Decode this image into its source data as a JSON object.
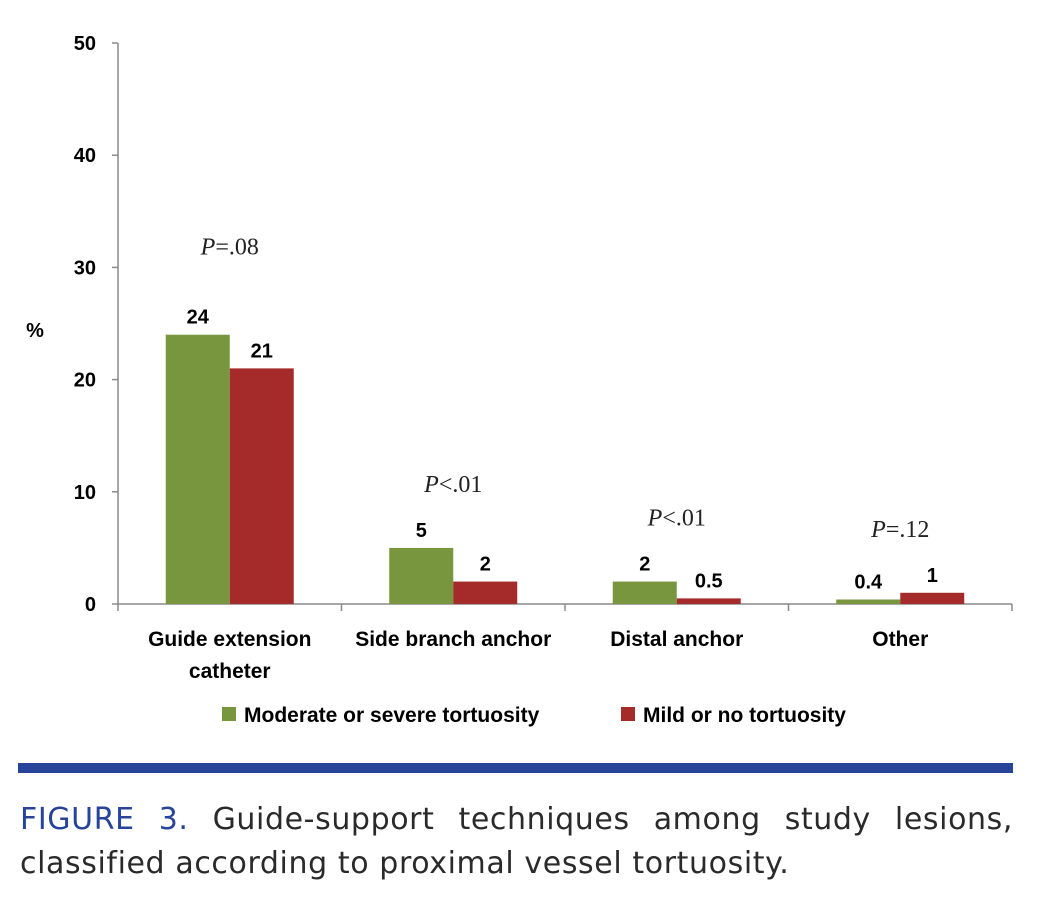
{
  "chart_data": {
    "type": "bar",
    "ylabel": "%",
    "ylim": [
      0,
      50
    ],
    "yticks": [
      0,
      10,
      20,
      30,
      40,
      50
    ],
    "categories": [
      [
        "Guide extension",
        "catheter"
      ],
      [
        "Side branch anchor"
      ],
      [
        "Distal anchor"
      ],
      [
        "Other"
      ]
    ],
    "series": [
      {
        "name": "Moderate or severe tortuosity",
        "color": "#77963d",
        "values": [
          24,
          5,
          2,
          0.4
        ],
        "labels": [
          "24",
          "5",
          "2",
          "0.4"
        ]
      },
      {
        "name": "Mild or no tortuosity",
        "color": "#a52a2a",
        "values": [
          21,
          2,
          0.5,
          1
        ],
        "labels": [
          "21",
          "2",
          "0.5",
          "1"
        ]
      }
    ],
    "annotations": [
      {
        "p": "P",
        "rest": "=.08"
      },
      {
        "p": "P",
        "rest": "<.01"
      },
      {
        "p": "P",
        "rest": "<.01"
      },
      {
        "p": "P",
        "rest": "=.12"
      }
    ],
    "legend_position": "bottom"
  },
  "caption": {
    "label": "FIGURE 3.",
    "text": "Guide-support techniques among study lesions, classified according to proximal vessel tortuosity."
  }
}
